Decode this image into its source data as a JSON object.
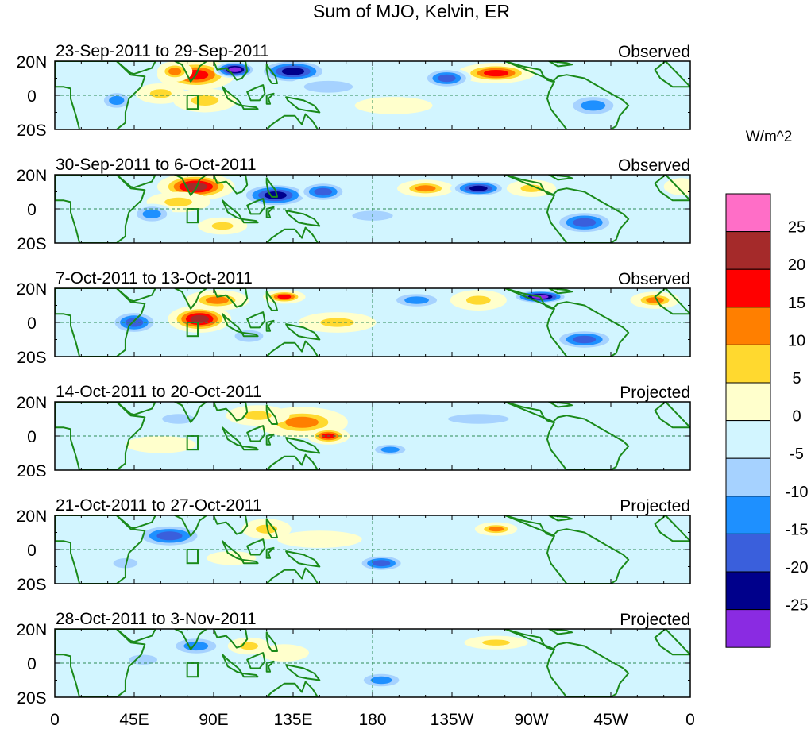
{
  "chart_data": {
    "type": "heatmap",
    "title": "Sum of MJO, Kelvin, ER",
    "units": "W/m^2",
    "x_ticks": [
      "0",
      "45E",
      "90E",
      "135E",
      "180",
      "135W",
      "90W",
      "45W",
      "0"
    ],
    "y_ticks": [
      "20N",
      "0",
      "20S"
    ],
    "colorbar": {
      "levels": [
        "25",
        "20",
        "15",
        "10",
        "5",
        "0",
        "-5",
        "-10",
        "-15",
        "-20",
        "-25"
      ],
      "colors": [
        "#ff6ec7",
        "#a52a2a",
        "#ff0000",
        "#ff7f00",
        "#ffd92f",
        "#ffffcc",
        "#d2f5ff",
        "#a6d2ff",
        "#1e90ff",
        "#3a5fdc",
        "#00008b",
        "#8a2be2"
      ]
    },
    "panels": [
      {
        "date_range": "23-Sep-2011 to 29-Sep-2011",
        "status": "Observed",
        "anomalies": [
          {
            "lon": 80,
            "lat": 12,
            "value": 22,
            "rx": 22,
            "ry": 9
          },
          {
            "lon": 68,
            "lat": 14,
            "value": 15,
            "rx": 10,
            "ry": 6
          },
          {
            "lon": 60,
            "lat": 1,
            "value": 12,
            "rx": 14,
            "ry": 6
          },
          {
            "lon": 85,
            "lat": -3,
            "value": 10,
            "rx": 18,
            "ry": 7
          },
          {
            "lon": 102,
            "lat": 15,
            "value": -25,
            "rx": 12,
            "ry": 5
          },
          {
            "lon": 135,
            "lat": 14,
            "value": -22,
            "rx": 20,
            "ry": 7
          },
          {
            "lon": 155,
            "lat": 5,
            "value": -8,
            "rx": 24,
            "ry": 6
          },
          {
            "lon": 250,
            "lat": 13,
            "value": 20,
            "rx": 22,
            "ry": 6
          },
          {
            "lon": 222,
            "lat": 10,
            "value": -15,
            "rx": 14,
            "ry": 6
          },
          {
            "lon": 305,
            "lat": -6,
            "value": -12,
            "rx": 16,
            "ry": 7
          },
          {
            "lon": 35,
            "lat": -3,
            "value": -10,
            "rx": 10,
            "ry": 6
          },
          {
            "lon": 192,
            "lat": -6,
            "value": 6,
            "rx": 22,
            "ry": 5
          }
        ]
      },
      {
        "date_range": "30-Sep-2011 to 6-Oct-2011",
        "status": "Observed",
        "anomalies": [
          {
            "lon": 80,
            "lat": 13,
            "value": 25,
            "rx": 22,
            "ry": 8
          },
          {
            "lon": 70,
            "lat": 4,
            "value": 12,
            "rx": 18,
            "ry": 6
          },
          {
            "lon": 125,
            "lat": 8,
            "value": -20,
            "rx": 20,
            "ry": 7
          },
          {
            "lon": 152,
            "lat": 10,
            "value": -18,
            "rx": 14,
            "ry": 6
          },
          {
            "lon": 210,
            "lat": 12,
            "value": 15,
            "rx": 16,
            "ry": 5
          },
          {
            "lon": 240,
            "lat": 12,
            "value": -22,
            "rx": 16,
            "ry": 5
          },
          {
            "lon": 270,
            "lat": 12,
            "value": 12,
            "rx": 14,
            "ry": 5
          },
          {
            "lon": 300,
            "lat": -8,
            "value": -15,
            "rx": 18,
            "ry": 7
          },
          {
            "lon": 55,
            "lat": -3,
            "value": -12,
            "rx": 12,
            "ry": 6
          },
          {
            "lon": 95,
            "lat": -10,
            "value": 10,
            "rx": 14,
            "ry": 5
          },
          {
            "lon": 180,
            "lat": -4,
            "value": -8,
            "rx": 20,
            "ry": 5
          },
          {
            "lon": 355,
            "lat": 13,
            "value": 8,
            "rx": 10,
            "ry": 5
          }
        ]
      },
      {
        "date_range": "7-Oct-2011 to 13-Oct-2011",
        "status": "Observed",
        "anomalies": [
          {
            "lon": 82,
            "lat": 2,
            "value": 25,
            "rx": 18,
            "ry": 8
          },
          {
            "lon": 92,
            "lat": 13,
            "value": 15,
            "rx": 18,
            "ry": 6
          },
          {
            "lon": 130,
            "lat": 15,
            "value": 22,
            "rx": 12,
            "ry": 4
          },
          {
            "lon": 160,
            "lat": 0,
            "value": 12,
            "rx": 22,
            "ry": 6
          },
          {
            "lon": 205,
            "lat": 13,
            "value": -12,
            "rx": 16,
            "ry": 5
          },
          {
            "lon": 240,
            "lat": 13,
            "value": 12,
            "rx": 16,
            "ry": 6
          },
          {
            "lon": 275,
            "lat": 15,
            "value": -25,
            "rx": 16,
            "ry": 4
          },
          {
            "lon": 340,
            "lat": 13,
            "value": 18,
            "rx": 14,
            "ry": 5
          },
          {
            "lon": 45,
            "lat": 0,
            "value": -15,
            "rx": 14,
            "ry": 7
          },
          {
            "lon": 300,
            "lat": -10,
            "value": -15,
            "rx": 18,
            "ry": 6
          },
          {
            "lon": 110,
            "lat": -8,
            "value": -8,
            "rx": 14,
            "ry": 6
          }
        ]
      },
      {
        "date_range": "14-Oct-2011 to 20-Oct-2011",
        "status": "Projected",
        "anomalies": [
          {
            "lon": 140,
            "lat": 8,
            "value": 15,
            "rx": 26,
            "ry": 9
          },
          {
            "lon": 155,
            "lat": 0,
            "value": 20,
            "rx": 12,
            "ry": 5
          },
          {
            "lon": 115,
            "lat": 12,
            "value": 10,
            "rx": 18,
            "ry": 6
          },
          {
            "lon": 60,
            "lat": -5,
            "value": 6,
            "rx": 20,
            "ry": 5
          },
          {
            "lon": 190,
            "lat": -8,
            "value": -10,
            "rx": 12,
            "ry": 4
          },
          {
            "lon": 240,
            "lat": 10,
            "value": -5,
            "rx": 30,
            "ry": 5
          },
          {
            "lon": 70,
            "lat": 10,
            "value": -6,
            "rx": 16,
            "ry": 5
          }
        ]
      },
      {
        "date_range": "21-Oct-2011 to 27-Oct-2011",
        "status": "Projected",
        "anomalies": [
          {
            "lon": 65,
            "lat": 8,
            "value": -18,
            "rx": 20,
            "ry": 7
          },
          {
            "lon": 120,
            "lat": 12,
            "value": 12,
            "rx": 14,
            "ry": 6
          },
          {
            "lon": 250,
            "lat": 12,
            "value": 15,
            "rx": 12,
            "ry": 4
          },
          {
            "lon": 185,
            "lat": -8,
            "value": -15,
            "rx": 14,
            "ry": 5
          },
          {
            "lon": 150,
            "lat": 6,
            "value": 5,
            "rx": 24,
            "ry": 5
          },
          {
            "lon": 40,
            "lat": -8,
            "value": -8,
            "rx": 12,
            "ry": 5
          },
          {
            "lon": 100,
            "lat": -5,
            "value": 6,
            "rx": 14,
            "ry": 4
          }
        ]
      },
      {
        "date_range": "28-Oct-2011 to 3-Nov-2011",
        "status": "Projected",
        "anomalies": [
          {
            "lon": 80,
            "lat": 10,
            "value": -10,
            "rx": 16,
            "ry": 6
          },
          {
            "lon": 110,
            "lat": 10,
            "value": 10,
            "rx": 12,
            "ry": 5
          },
          {
            "lon": 130,
            "lat": 6,
            "value": 8,
            "rx": 14,
            "ry": 5
          },
          {
            "lon": 250,
            "lat": 12,
            "value": 10,
            "rx": 18,
            "ry": 4
          },
          {
            "lon": 185,
            "lat": -10,
            "value": -10,
            "rx": 14,
            "ry": 5
          },
          {
            "lon": 50,
            "lat": 2,
            "value": -6,
            "rx": 14,
            "ry": 5
          }
        ]
      }
    ]
  }
}
